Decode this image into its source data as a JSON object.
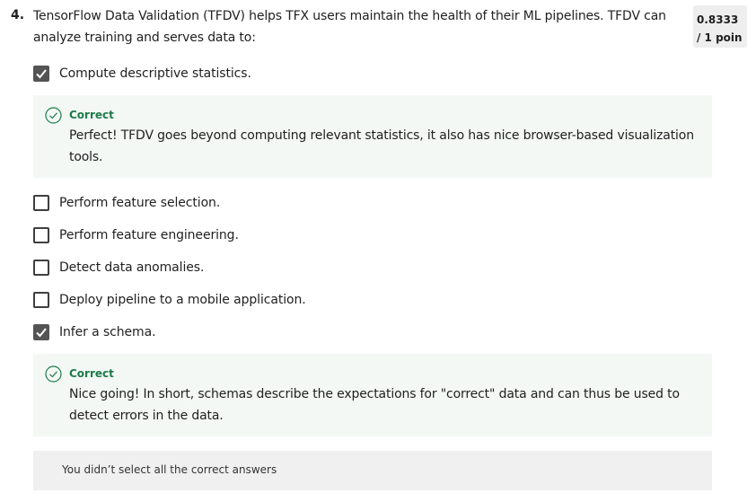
{
  "question": {
    "number": "4.",
    "text": "TensorFlow Data Validation (TFDV) helps TFX users maintain the health of their ML pipelines. TFDV can analyze training and serves data to:"
  },
  "score": {
    "value": "0.8333",
    "points": "/ 1 poin"
  },
  "options": [
    {
      "label": "Compute descriptive statistics.",
      "checked": true
    },
    {
      "label": "Perform feature selection.",
      "checked": false
    },
    {
      "label": "Perform feature engineering.",
      "checked": false
    },
    {
      "label": "Detect data anomalies.",
      "checked": false
    },
    {
      "label": "Deploy pipeline to a mobile application.",
      "checked": false
    },
    {
      "label": "Infer a schema.",
      "checked": true
    }
  ],
  "feedback": [
    {
      "title": "Correct",
      "text": "Perfect! TFDV goes beyond computing relevant statistics, it also has nice browser-based visualization tools."
    },
    {
      "title": "Correct",
      "text": " Nice going! In short, schemas describe the expectations for \"correct\" data and can thus be used to detect errors in the data."
    }
  ],
  "summary": {
    "text": "You didn’t select all the correct answers"
  },
  "colors": {
    "correct_green": "#1e7b4a",
    "feedback_bg": "#f3f8f5",
    "checkbox_checked": "#545454"
  },
  "icons": {
    "checkbox_checked": "checkmark-icon",
    "feedback": "check-circle-icon"
  }
}
